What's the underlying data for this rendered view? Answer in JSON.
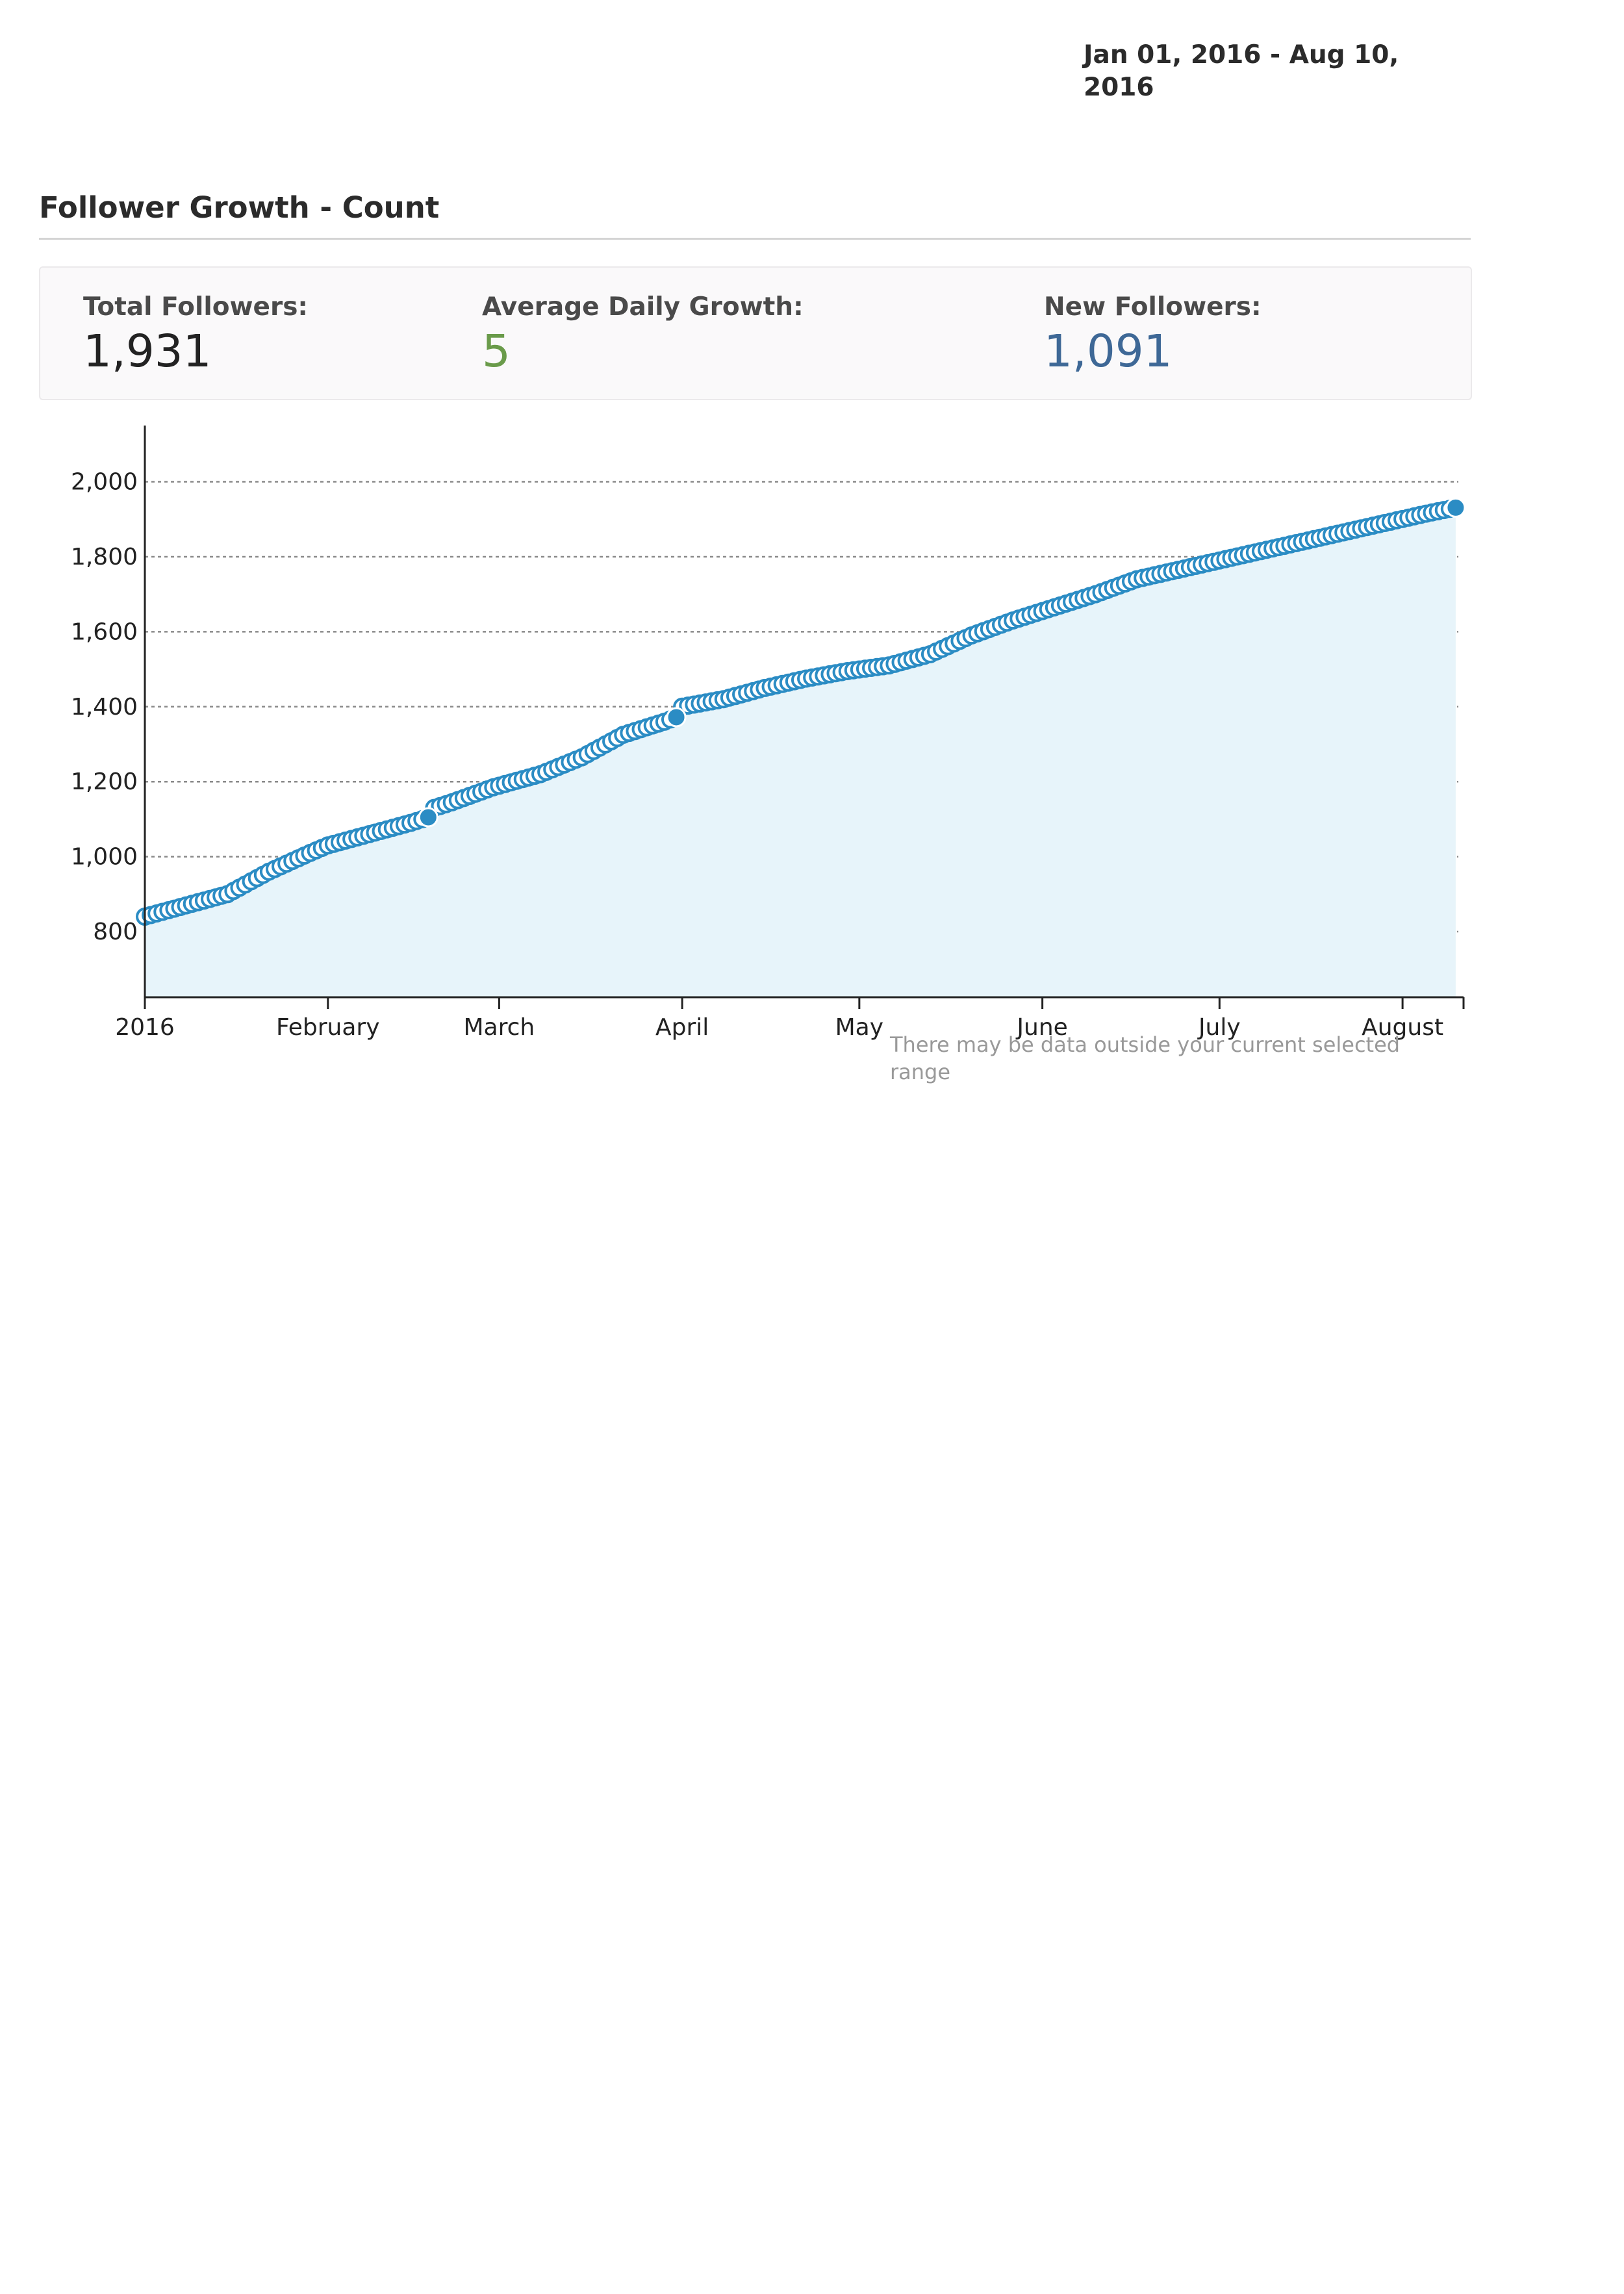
{
  "header": {
    "date_range": "Jan 01, 2016 - Aug 10, 2016"
  },
  "section": {
    "title": "Follower Growth - Count"
  },
  "stats": {
    "total_label": "Total Followers:",
    "total_value": "1,931",
    "avg_label": "Average Daily Growth:",
    "avg_value": "5",
    "new_label": "New Followers:",
    "new_value": "1,091"
  },
  "colors": {
    "series": "#2b8cc4",
    "area": "#e7f4fa",
    "grid": "#8a8a8a",
    "avg_value": "#6a9b4a",
    "new_value": "#3e6896"
  },
  "chart_data": {
    "type": "line",
    "xlabel": "",
    "ylabel": "",
    "y_ticks": [
      800,
      1000,
      1200,
      1400,
      1600,
      1800,
      2000
    ],
    "y_tick_labels": [
      "800",
      "1,000",
      "1,200",
      "1,400",
      "1,600",
      "1,800",
      "2,000"
    ],
    "x_tick_labels": [
      "2016",
      "February",
      "March",
      "April",
      "May",
      "June",
      "July",
      "August"
    ],
    "x_tick_dates": [
      "2016-01-01",
      "2016-02-01",
      "2016-03-01",
      "2016-04-01",
      "2016-05-01",
      "2016-06-01",
      "2016-07-01",
      "2016-08-01"
    ],
    "x_range": [
      "2016-01-01",
      "2016-08-11"
    ],
    "ylim": [
      625,
      2150
    ],
    "grid": "horizontal dotted",
    "legend": "none",
    "note": "There may be data outside your current selected range",
    "series": [
      {
        "points": [
          [
            "2016-01-01",
            840
          ],
          [
            "2016-01-08",
            870
          ],
          [
            "2016-01-15",
            900
          ],
          [
            "2016-01-22",
            960
          ],
          [
            "2016-01-29",
            1010
          ],
          [
            "2016-02-01",
            1030
          ],
          [
            "2016-02-08",
            1060
          ],
          [
            "2016-02-15",
            1090
          ],
          [
            "2016-02-18",
            1105
          ],
          [
            "2016-02-19",
            1130
          ],
          [
            "2016-02-22",
            1145
          ],
          [
            "2016-02-29",
            1185
          ],
          [
            "2016-03-08",
            1220
          ],
          [
            "2016-03-15",
            1265
          ],
          [
            "2016-03-22",
            1325
          ],
          [
            "2016-03-29",
            1360
          ],
          [
            "2016-03-31",
            1372
          ],
          [
            "2016-04-01",
            1400
          ],
          [
            "2016-04-08",
            1420
          ],
          [
            "2016-04-15",
            1450
          ],
          [
            "2016-04-22",
            1475
          ],
          [
            "2016-04-29",
            1495
          ],
          [
            "2016-05-06",
            1510
          ],
          [
            "2016-05-13",
            1540
          ],
          [
            "2016-05-20",
            1590
          ],
          [
            "2016-05-27",
            1630
          ],
          [
            "2016-06-03",
            1665
          ],
          [
            "2016-06-10",
            1700
          ],
          [
            "2016-06-17",
            1740
          ],
          [
            "2016-06-24",
            1765
          ],
          [
            "2016-07-01",
            1790
          ],
          [
            "2016-07-08",
            1815
          ],
          [
            "2016-07-15",
            1840
          ],
          [
            "2016-07-22",
            1865
          ],
          [
            "2016-07-29",
            1890
          ],
          [
            "2016-08-05",
            1915
          ],
          [
            "2016-08-10",
            1931
          ]
        ],
        "highlighted": [
          "2016-02-18",
          "2016-03-31",
          "2016-08-10"
        ]
      }
    ]
  }
}
